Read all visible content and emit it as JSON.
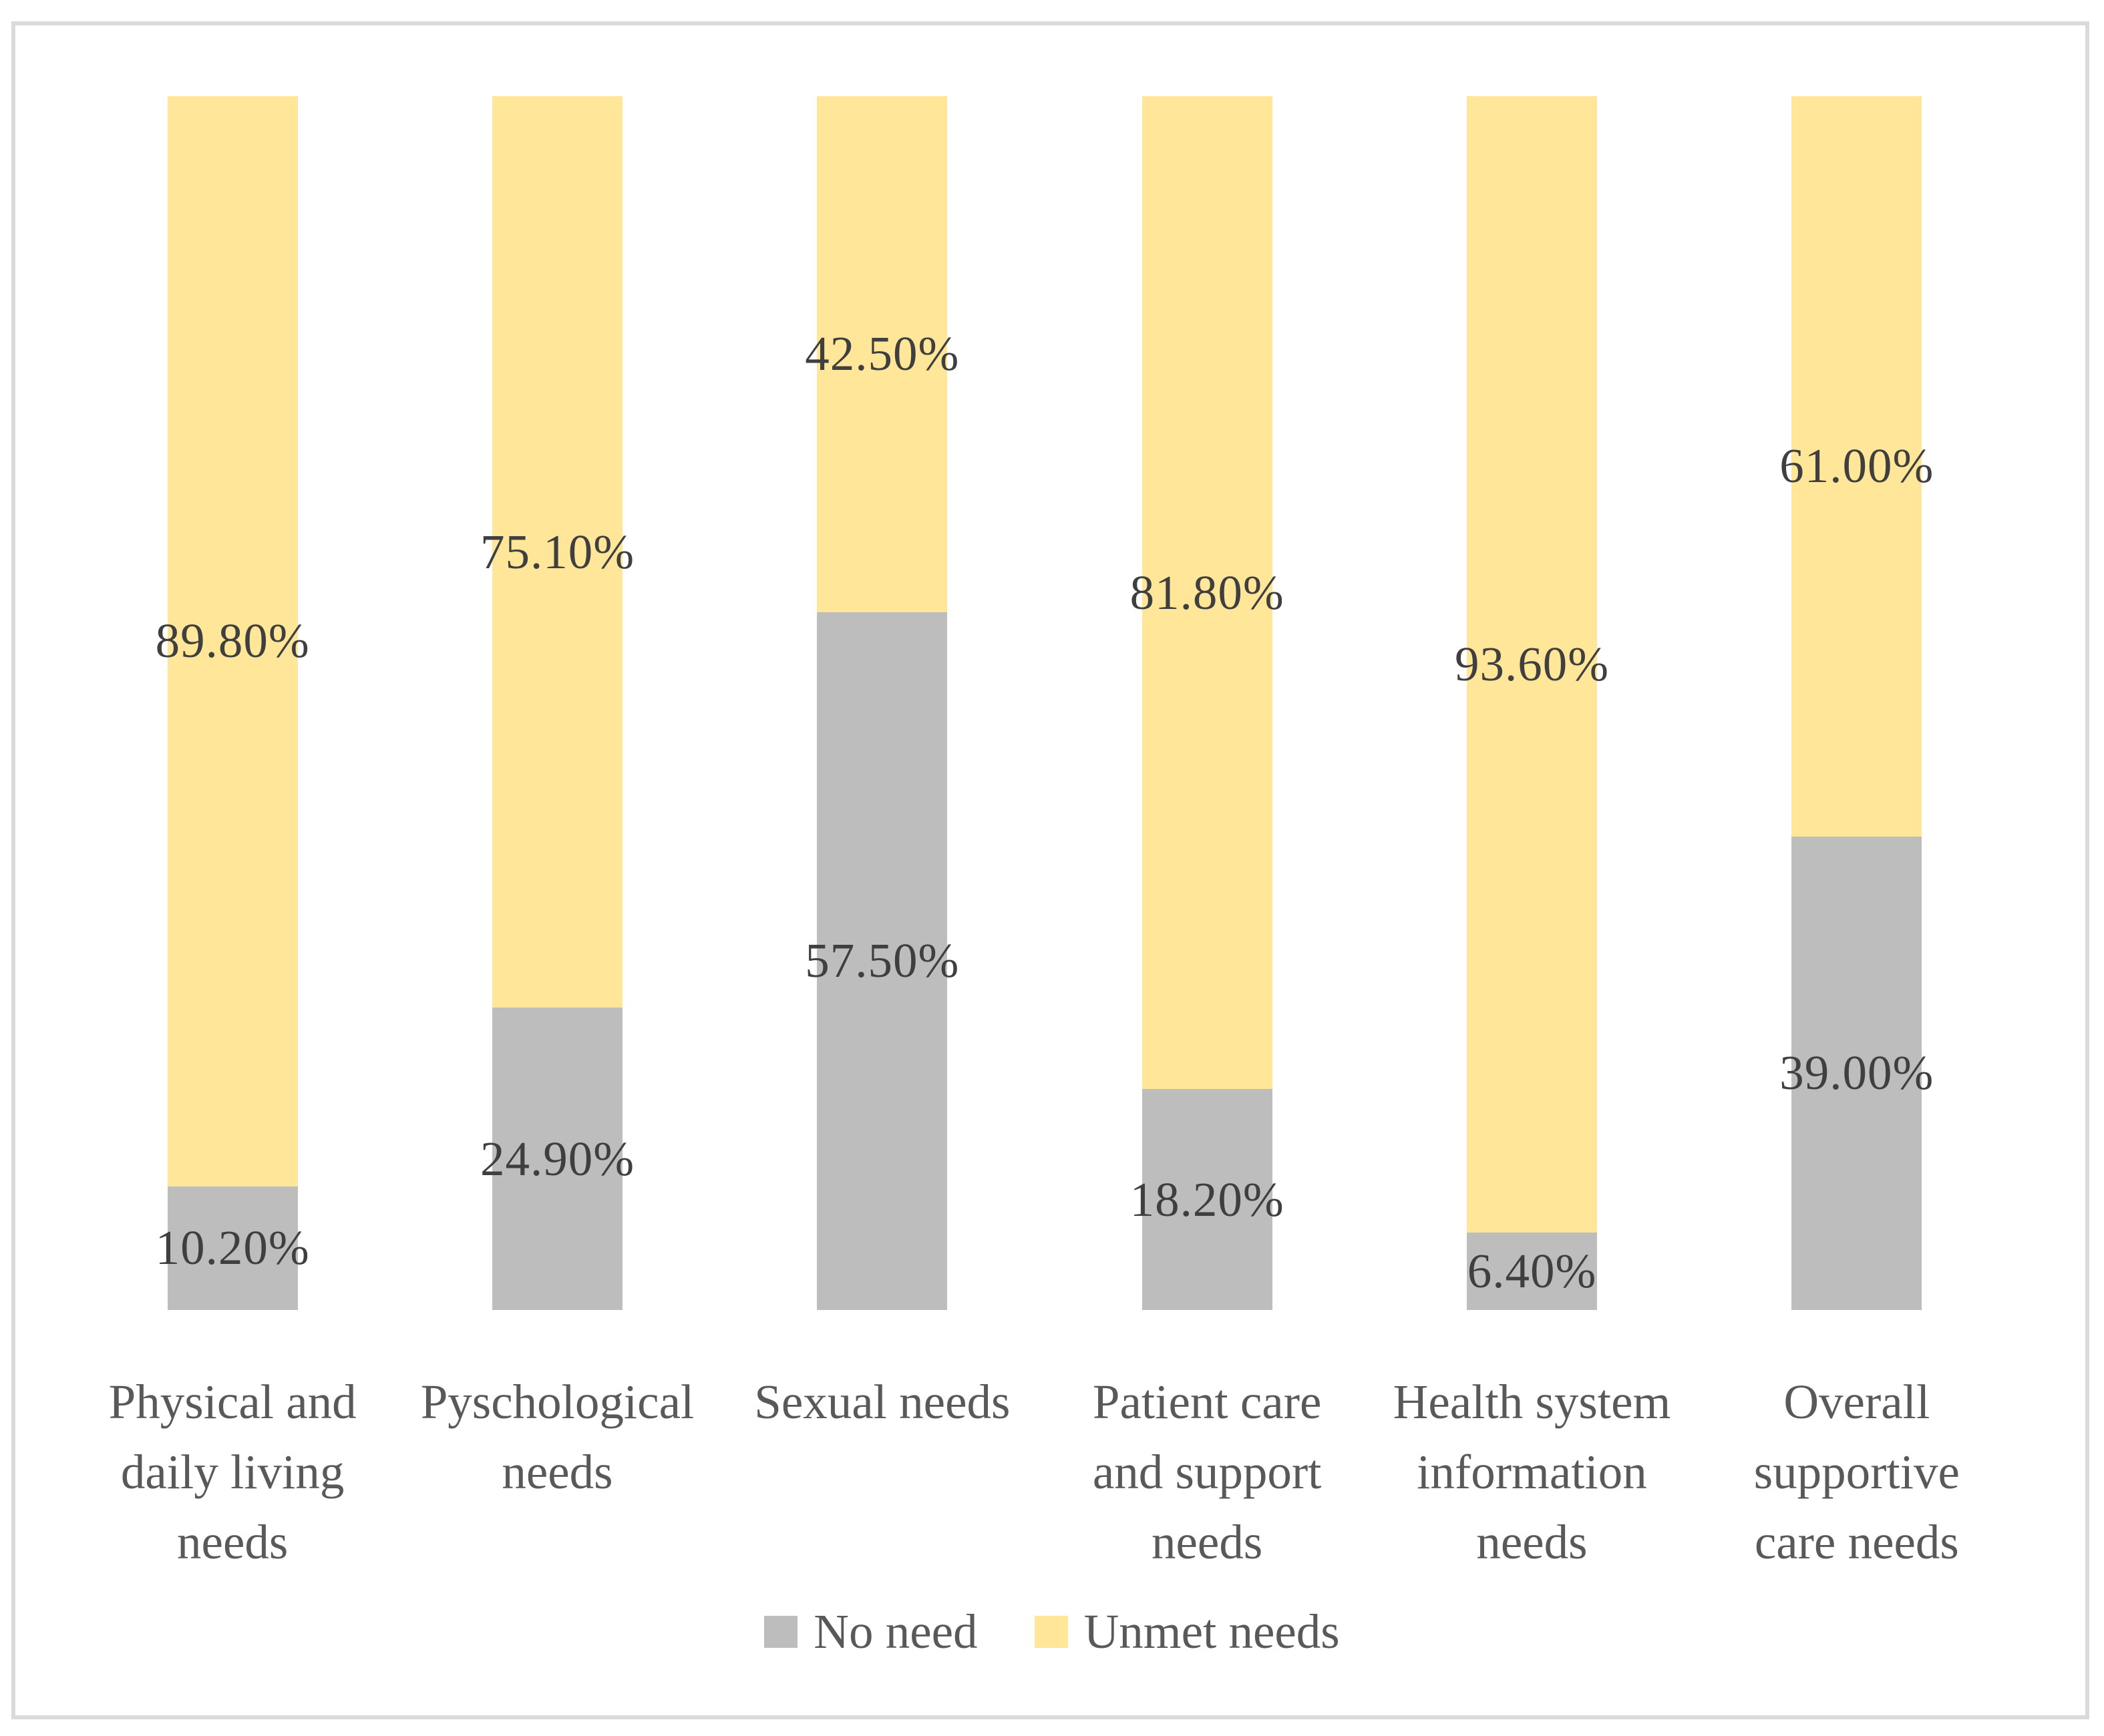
{
  "figure": {
    "background_color": "#FFFFFF",
    "border_color": "#DADADA",
    "value_label_color": "#3F3F3F",
    "category_label_color": "#595959",
    "legend_label_color": "#595959"
  },
  "chart_data": {
    "type": "bar",
    "subtype": "stacked-column-100pct",
    "title": "",
    "xlabel": "",
    "ylabel": "",
    "ylim": [
      0,
      100
    ],
    "gridlines": false,
    "axes_visible": false,
    "categories": [
      "Physical and daily living needs",
      "Pyschological needs",
      "Sexual needs",
      "Patient care and support needs",
      "Health system information needs",
      "Overall supportive care needs"
    ],
    "category_lines": [
      [
        "Physical and",
        "daily living",
        "needs"
      ],
      [
        "Pyschological",
        "needs"
      ],
      [
        "Sexual needs"
      ],
      [
        "Patient care",
        "and support",
        "needs"
      ],
      [
        "Health system",
        "information",
        "needs"
      ],
      [
        "Overall",
        "supportive",
        "care needs"
      ]
    ],
    "series": [
      {
        "name": "No need",
        "stack_position": "bottom",
        "color": "#BDBDBD",
        "values": [
          10.2,
          24.9,
          57.5,
          18.2,
          6.4,
          39.0
        ],
        "labels": [
          "10.20%",
          "24.90%",
          "57.50%",
          "18.20%",
          "6.40%",
          "39.00%"
        ]
      },
      {
        "name": "Unmet needs",
        "stack_position": "top",
        "color": "#FFE699",
        "values": [
          89.8,
          75.1,
          42.5,
          81.8,
          93.6,
          61.0
        ],
        "labels": [
          "89.80%",
          "75.10%",
          "42.50%",
          "81.80%",
          "93.60%",
          "61.00%"
        ]
      }
    ],
    "legend": {
      "position": "bottom",
      "items": [
        "No need",
        "Unmet needs"
      ]
    }
  }
}
